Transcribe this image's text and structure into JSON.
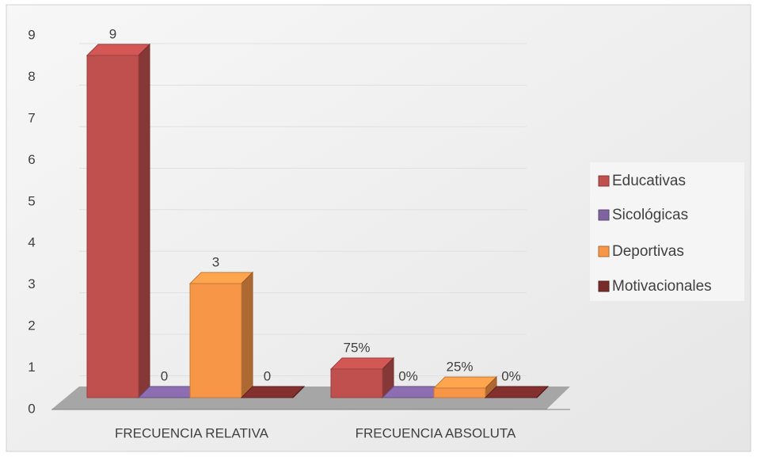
{
  "chart_data": {
    "type": "bar3d",
    "categories": [
      "FRECUENCIA RELATIVA",
      "FRECUENCIA ABSOLUTA"
    ],
    "series": [
      {
        "name": "Educativas",
        "color": "#c0504d",
        "values": [
          9,
          0.75
        ],
        "value_labels": [
          "9",
          "75%"
        ]
      },
      {
        "name": "Sicológicas",
        "color": "#8064a2",
        "values": [
          0,
          0
        ],
        "value_labels": [
          "0",
          "0%"
        ]
      },
      {
        "name": "Deportivas",
        "color": "#f79646",
        "values": [
          3,
          0.25
        ],
        "value_labels": [
          "3",
          "25%"
        ]
      },
      {
        "name": "Motivacionales",
        "color": "#772c2a",
        "values": [
          0,
          0
        ],
        "value_labels": [
          "0",
          "0%"
        ]
      }
    ],
    "ylim": [
      0,
      9
    ],
    "yticks": [
      0,
      1,
      2,
      3,
      4,
      5,
      6,
      7,
      8,
      9
    ],
    "grid": true,
    "legend": "right"
  }
}
